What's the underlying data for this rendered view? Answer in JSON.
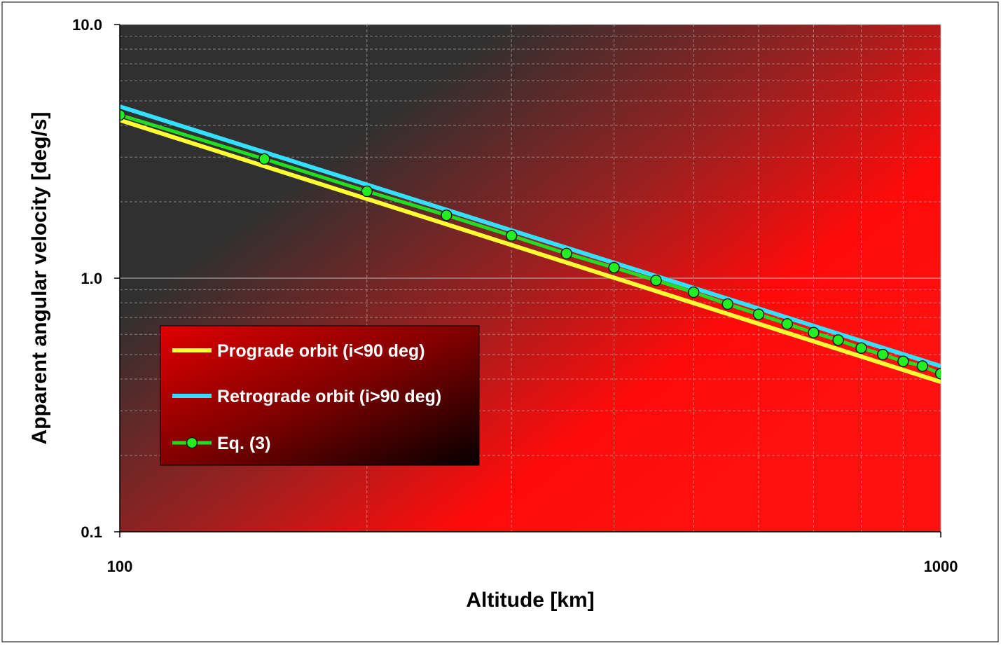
{
  "chart_data": {
    "type": "line",
    "title": "",
    "xlabel": "Altitude [km]",
    "ylabel": "Apparent angular velocity [deg/s]",
    "x_scale": "log",
    "y_scale": "log",
    "xlim": [
      100,
      1000
    ],
    "ylim": [
      0.1,
      10
    ],
    "x_ticks": [
      {
        "value": 100,
        "label": "100"
      },
      {
        "value": 1000,
        "label": "1000"
      }
    ],
    "y_ticks": [
      {
        "value": 0.1,
        "label": "0.1"
      },
      {
        "value": 1,
        "label": "1.0"
      },
      {
        "value": 10,
        "label": "10.0"
      }
    ],
    "grid": true,
    "legend_position": "lower-left",
    "series": [
      {
        "name": "Prograde orbit (i<90 deg)",
        "color": "#ffff33",
        "marker": "none",
        "x": [
          100,
          1000
        ],
        "y": [
          4.2,
          0.39
        ]
      },
      {
        "name": "Retrograde orbit (i>90 deg)",
        "color": "#33e0ff",
        "marker": "none",
        "x": [
          100,
          1000
        ],
        "y": [
          4.75,
          0.45
        ]
      },
      {
        "name": "Eq. (3)",
        "color": "#22dd22",
        "marker": "circle",
        "marker_color": "#22ee22",
        "x": [
          100,
          150,
          200,
          250,
          300,
          350,
          400,
          450,
          500,
          550,
          600,
          650,
          700,
          750,
          800,
          850,
          900,
          950,
          1000
        ],
        "y": [
          4.4,
          2.95,
          2.2,
          1.77,
          1.47,
          1.25,
          1.1,
          0.98,
          0.88,
          0.79,
          0.72,
          0.66,
          0.61,
          0.57,
          0.53,
          0.5,
          0.47,
          0.45,
          0.42
        ]
      }
    ]
  }
}
